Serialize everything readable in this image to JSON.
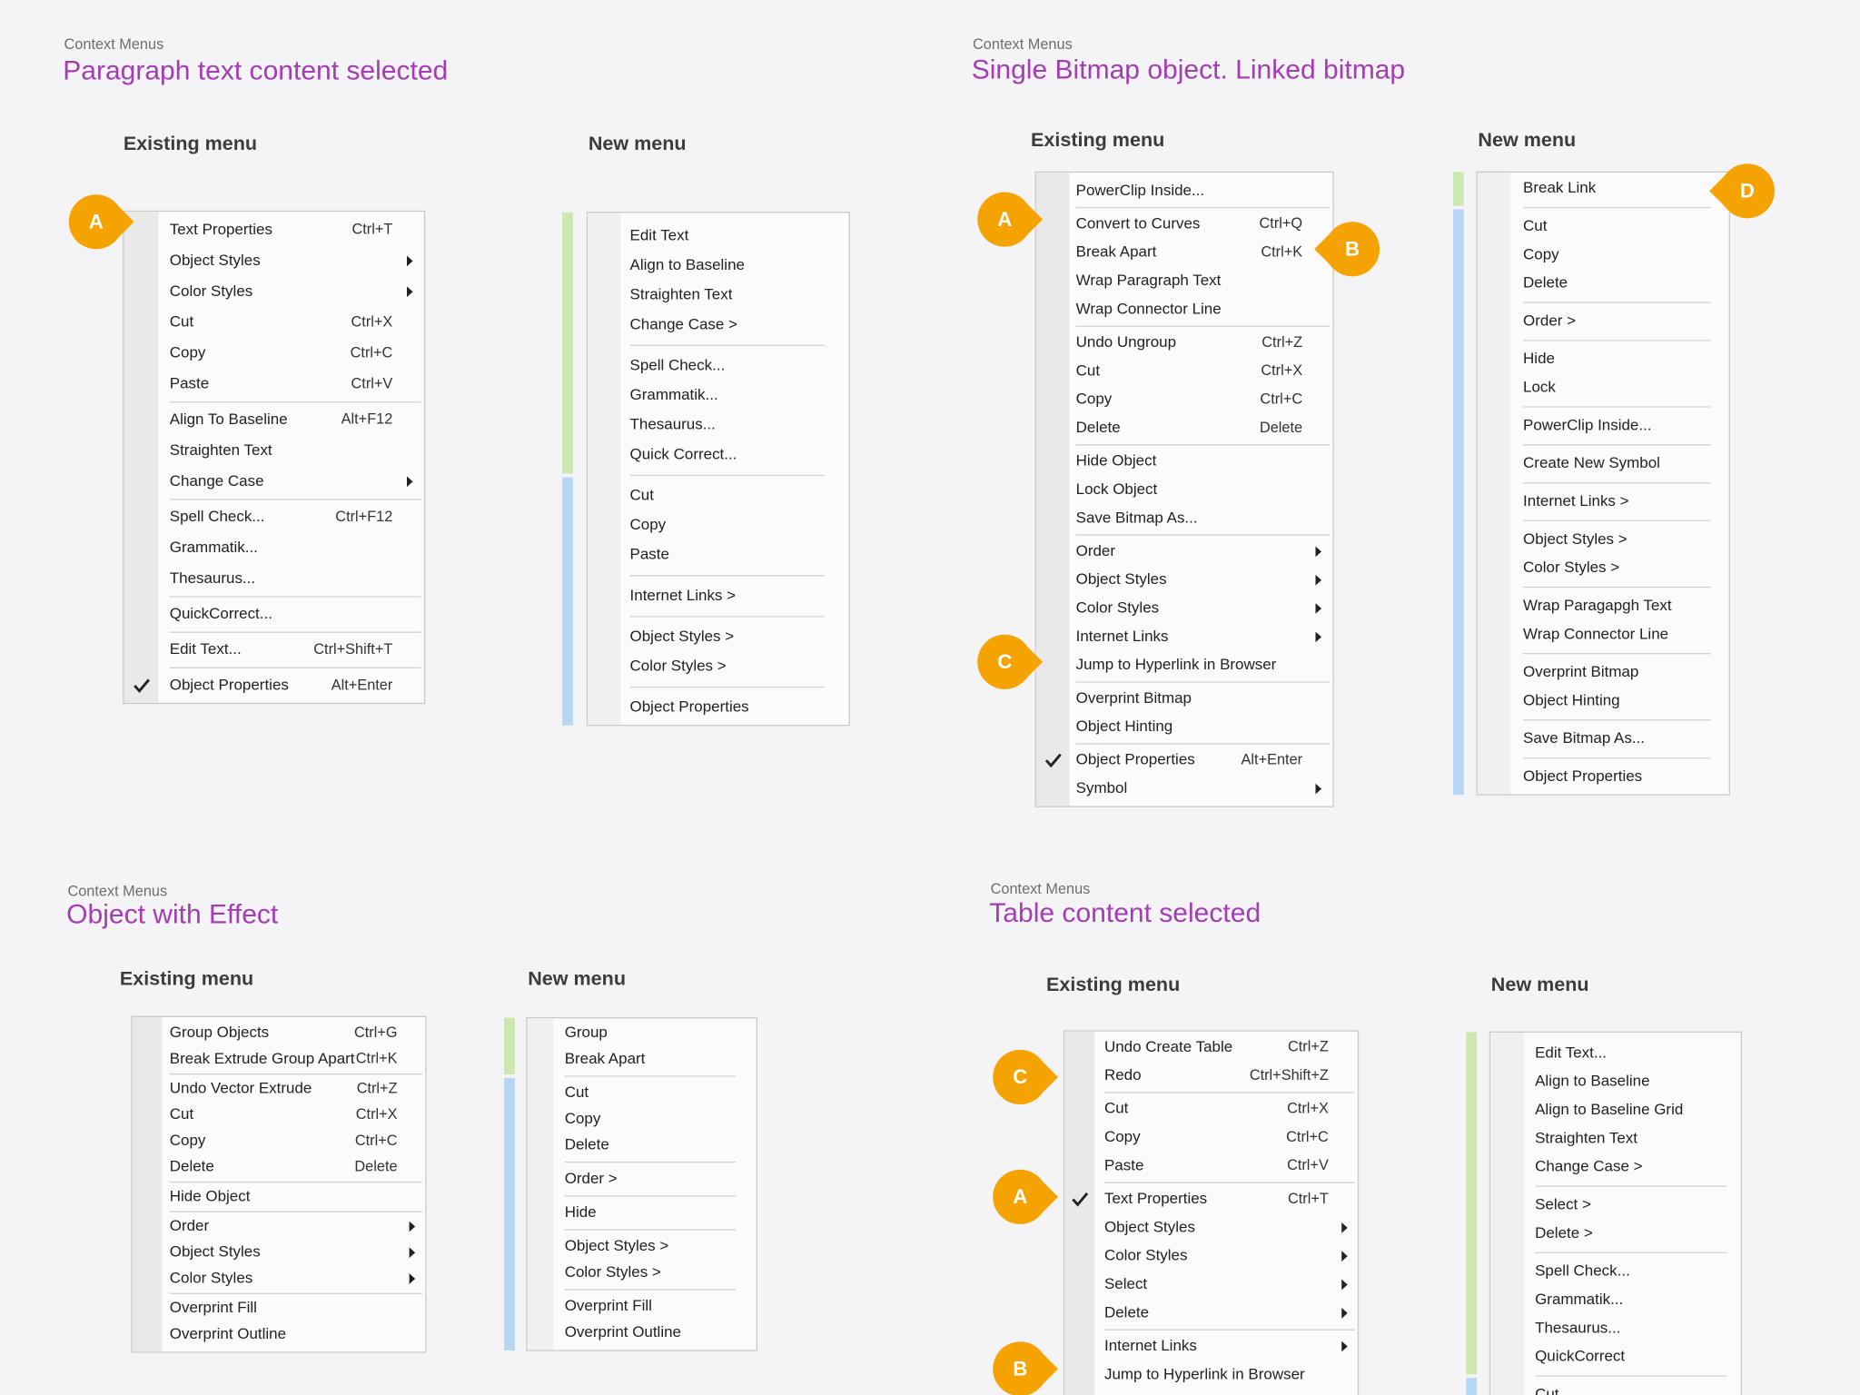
{
  "panels": [
    {
      "eyebrow": "Context Menus",
      "title": "Paragraph text content selected",
      "existing": {
        "heading": "Existing menu",
        "groups": [
          [
            {
              "label": "Text Properties",
              "shortcut": "Ctrl+T"
            },
            {
              "label": "Object Styles",
              "submenu": true
            },
            {
              "label": "Color Styles",
              "submenu": true
            },
            {
              "label": "Cut",
              "shortcut": "Ctrl+X"
            },
            {
              "label": "Copy",
              "shortcut": "Ctrl+C"
            },
            {
              "label": "Paste",
              "shortcut": "Ctrl+V",
              "disabled": true
            }
          ],
          [
            {
              "label": "Align To Baseline",
              "shortcut": "Alt+F12"
            },
            {
              "label": "Straighten Text"
            },
            {
              "label": "Change Case",
              "submenu": true
            }
          ],
          [
            {
              "label": "Spell Check...",
              "shortcut": "Ctrl+F12"
            },
            {
              "label": "Grammatik..."
            },
            {
              "label": "Thesaurus..."
            }
          ],
          [
            {
              "label": "QuickCorrect..."
            }
          ],
          [
            {
              "label": "Edit Text...",
              "shortcut": "Ctrl+Shift+T"
            }
          ],
          [
            {
              "label": "Object Properties",
              "shortcut": "Alt+Enter",
              "checked": true
            }
          ]
        ]
      },
      "new": {
        "heading": "New menu",
        "groups": [
          [
            "Edit Text",
            "Align to Baseline",
            "Straighten Text",
            "Change Case >"
          ],
          [
            "Spell Check...",
            "Grammatik...",
            "Thesaurus...",
            "Quick Correct..."
          ],
          [
            "Cut",
            "Copy",
            "Paste"
          ],
          [
            "Internet Links >"
          ],
          [
            "Object Styles >",
            "Color Styles >"
          ],
          [
            "Object Properties"
          ]
        ]
      },
      "badges": [
        "A"
      ]
    },
    {
      "eyebrow": "Context Menus",
      "title": "Single Bitmap object. Linked bitmap",
      "existing": {
        "heading": "Existing menu",
        "groups": [
          [
            {
              "label": "PowerClip Inside..."
            }
          ],
          [
            {
              "label": "Convert to Curves",
              "shortcut": "Ctrl+Q",
              "disabled": true
            },
            {
              "label": "Break Apart",
              "shortcut": "Ctrl+K",
              "disabled": true
            },
            {
              "label": "Wrap Paragraph Text"
            },
            {
              "label": "Wrap Connector Line"
            }
          ],
          [
            {
              "label": "Undo Ungroup",
              "shortcut": "Ctrl+Z"
            },
            {
              "label": "Cut",
              "shortcut": "Ctrl+X"
            },
            {
              "label": "Copy",
              "shortcut": "Ctrl+C"
            },
            {
              "label": "Delete",
              "shortcut": "Delete"
            }
          ],
          [
            {
              "label": "Hide Object"
            },
            {
              "label": "Lock Object"
            },
            {
              "label": "Save Bitmap As..."
            }
          ],
          [
            {
              "label": "Order",
              "submenu": true
            },
            {
              "label": "Object Styles",
              "submenu": true
            },
            {
              "label": "Color Styles",
              "submenu": true
            },
            {
              "label": "Internet Links",
              "submenu": true
            },
            {
              "label": "Jump to Hyperlink in Browser",
              "disabled": true
            }
          ],
          [
            {
              "label": "Overprint Bitmap"
            },
            {
              "label": "Object Hinting"
            }
          ],
          [
            {
              "label": "Object Properties",
              "shortcut": "Alt+Enter",
              "checked": true
            },
            {
              "label": "Symbol",
              "submenu": true
            }
          ]
        ]
      },
      "new": {
        "heading": "New menu",
        "groups": [
          [
            "Break Link"
          ],
          [
            "Cut",
            "Copy",
            "Delete"
          ],
          [
            "Order >"
          ],
          [
            "Hide",
            "Lock"
          ],
          [
            "PowerClip Inside..."
          ],
          [
            "Create New Symbol"
          ],
          [
            "Internet Links >"
          ],
          [
            "Object Styles >",
            "Color Styles >"
          ],
          [
            "Wrap Paragapgh Text",
            "Wrap Connector Line"
          ],
          [
            "Overprint Bitmap",
            "Object Hinting"
          ],
          [
            "Save Bitmap As..."
          ],
          [
            "Object Properties"
          ]
        ]
      },
      "badges": [
        "A",
        "B",
        "C",
        "D"
      ]
    },
    {
      "eyebrow": "Context Menus",
      "title": "Object with Effect",
      "existing": {
        "heading": "Existing menu",
        "groups": [
          [
            {
              "label": "Group Objects",
              "shortcut": "Ctrl+G"
            },
            {
              "label": "Break Extrude Group Apart",
              "shortcut": "Ctrl+K"
            }
          ],
          [
            {
              "label": "Undo Vector Extrude",
              "shortcut": "Ctrl+Z"
            },
            {
              "label": "Cut",
              "shortcut": "Ctrl+X"
            },
            {
              "label": "Copy",
              "shortcut": "Ctrl+C"
            },
            {
              "label": "Delete",
              "shortcut": "Delete"
            }
          ],
          [
            {
              "label": "Hide Object"
            }
          ],
          [
            {
              "label": "Order",
              "submenu": true
            },
            {
              "label": "Object Styles",
              "submenu": true
            },
            {
              "label": "Color Styles",
              "submenu": true
            }
          ],
          [
            {
              "label": "Overprint Fill"
            },
            {
              "label": "Overprint Outline"
            }
          ]
        ]
      },
      "new": {
        "heading": "New menu",
        "groups": [
          [
            "Group",
            "Break Apart"
          ],
          [
            "Cut",
            "Copy",
            "Delete"
          ],
          [
            "Order >"
          ],
          [
            "Hide"
          ],
          [
            "Object Styles >",
            "Color Styles >"
          ],
          [
            "Overprint Fill",
            "Overprint Outline"
          ]
        ]
      }
    },
    {
      "eyebrow": "Context Menus",
      "title": "Table content selected",
      "existing": {
        "heading": "Existing menu",
        "groups": [
          [
            {
              "label": "Undo Create Table",
              "shortcut": "Ctrl+Z"
            },
            {
              "label": "Redo",
              "shortcut": "Ctrl+Shift+Z",
              "disabled": true
            }
          ],
          [
            {
              "label": "Cut",
              "shortcut": "Ctrl+X",
              "disabled": true
            },
            {
              "label": "Copy",
              "shortcut": "Ctrl+C",
              "disabled": true
            },
            {
              "label": "Paste",
              "shortcut": "Ctrl+V"
            }
          ],
          [
            {
              "label": "Text Properties",
              "shortcut": "Ctrl+T",
              "checked": true
            },
            {
              "label": "Object Styles",
              "submenu": true
            },
            {
              "label": "Color Styles",
              "submenu": true
            },
            {
              "label": "Select",
              "submenu": true
            },
            {
              "label": "Delete",
              "submenu": true
            }
          ],
          [
            {
              "label": "Internet Links",
              "submenu": true
            },
            {
              "label": "Jump to Hyperlink in Browser",
              "disabled": true
            }
          ]
        ]
      },
      "new": {
        "heading": "New menu",
        "groups": [
          [
            "Edit Text...",
            "Align to Baseline",
            "Align to Baseline Grid",
            "Straighten Text",
            "Change Case >"
          ],
          [
            "Select >",
            "Delete >"
          ],
          [
            "Spell Check...",
            "Grammatik...",
            "Thesaurus...",
            "QuickCorrect"
          ],
          [
            "Cut"
          ]
        ]
      },
      "badges": [
        "C",
        "A",
        "B"
      ]
    }
  ]
}
